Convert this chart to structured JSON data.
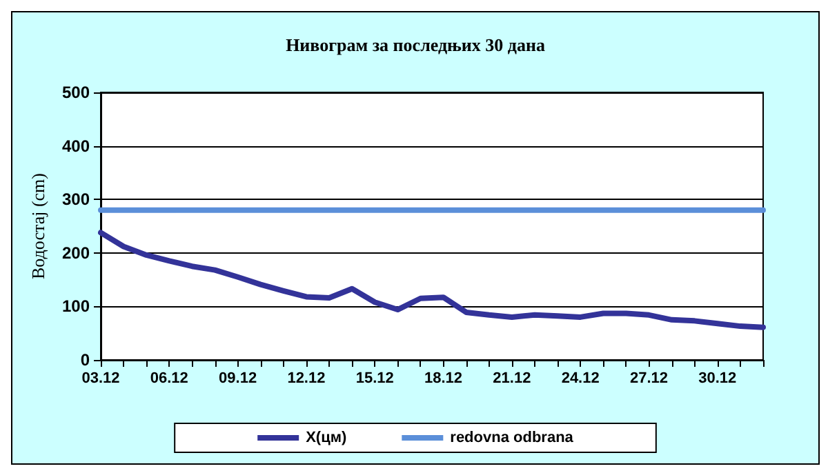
{
  "chart_data": {
    "type": "line",
    "title": "Нивограм за последњих 30 дана",
    "ylabel": "Водостај (cm)",
    "categories": [
      "03.12",
      null,
      null,
      "06.12",
      null,
      null,
      "09.12",
      null,
      null,
      "12.12",
      null,
      null,
      "15.12",
      null,
      null,
      "18.12",
      null,
      null,
      "21.12",
      null,
      null,
      "24.12",
      null,
      null,
      "27.12",
      null,
      null,
      "30.12",
      null,
      null
    ],
    "series": [
      {
        "name": "X(цм)",
        "color": "#333399",
        "values": [
          238,
          212,
          196,
          185,
          175,
          168,
          155,
          141,
          129,
          118,
          116,
          133,
          108,
          94,
          115,
          117,
          89,
          84,
          80,
          84,
          82,
          80,
          87,
          87,
          84,
          75,
          73,
          68,
          63,
          61
        ]
      },
      {
        "name": "redovna odbrana",
        "color": "#5b8fd9",
        "values": [
          280,
          280,
          280,
          280,
          280,
          280,
          280,
          280,
          280,
          280,
          280,
          280,
          280,
          280,
          280,
          280,
          280,
          280,
          280,
          280,
          280,
          280,
          280,
          280,
          280,
          280,
          280,
          280,
          280,
          280
        ]
      }
    ],
    "ylim": [
      0,
      500
    ],
    "yticks": [
      0,
      100,
      200,
      300,
      400,
      500
    ],
    "grid": "y",
    "legend": "bottom",
    "marker": "none",
    "line_style": "solid"
  }
}
